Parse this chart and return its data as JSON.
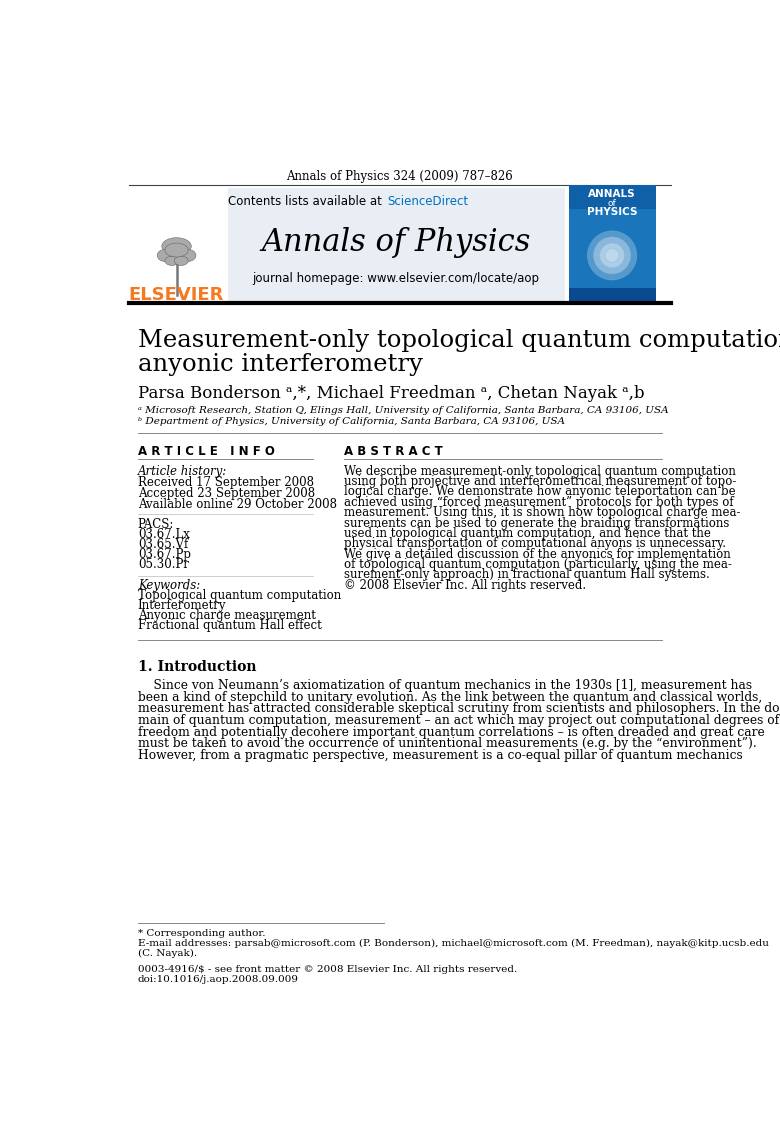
{
  "journal_header": "Annals of Physics 324 (2009) 787–826",
  "journal_name": "Annals of Physics",
  "journal_homepage": "journal homepage: www.elsevier.com/locate/aop",
  "contents_text": "Contents lists available at ScienceDirect",
  "elsevier_text": "ELSEVIER",
  "paper_title_line1": "Measurement-only topological quantum computation via",
  "paper_title_line2": "anyonic interferometry",
  "authors": "Parsa Bonderson ᵃ,*, Michael Freedman ᵃ, Chetan Nayak ᵃ,b",
  "affil_a": "ᵃ Microsoft Research, Station Q, Elings Hall, University of California, Santa Barbara, CA 93106, USA",
  "affil_b": "ᵇ Department of Physics, University of California, Santa Barbara, CA 93106, USA",
  "section_article_info": "A R T I C L E   I N F O",
  "section_abstract": "A B S T R A C T",
  "article_history_label": "Article history:",
  "received": "Received 17 September 2008",
  "accepted": "Accepted 23 September 2008",
  "available": "Available online 29 October 2008",
  "pacs_label": "PACS:",
  "pacs1": "03.67.Lx",
  "pacs2": "03.65.Vf",
  "pacs3": "03.67.Pp",
  "pacs4": "05.30.Pr",
  "keywords_label": "Keywords:",
  "keyword1": "Topological quantum computation",
  "keyword2": "Interferometry",
  "keyword3": "Anyonic charge measurement",
  "keyword4": "Fractional quantum Hall effect",
  "abstract_lines": [
    "We describe measurement-only topological quantum computation",
    "using both projective and interferometrical measurement of topo-",
    "logical charge. We demonstrate how anyonic teleportation can be",
    "achieved using “forced measurement” protocols for both types of",
    "measurement. Using this, it is shown how topological charge mea-",
    "surements can be used to generate the braiding transformations",
    "used in topological quantum computation, and hence that the",
    "physical transportation of computational anyons is unnecessary.",
    "We give a detailed discussion of the anyonics for implementation",
    "of topological quantum computation (particularly, using the mea-",
    "surement-only approach) in fractional quantum Hall systems.",
    "© 2008 Elsevier Inc. All rights reserved."
  ],
  "intro_section": "1. Introduction",
  "intro_lines": [
    "    Since von Neumann’s axiomatization of quantum mechanics in the 1930s [1], measurement has",
    "been a kind of stepchild to unitary evolution. As the link between the quantum and classical worlds,",
    "measurement has attracted considerable skeptical scrutiny from scientists and philosophers. In the do-",
    "main of quantum computation, measurement – an act which may project out computational degrees of",
    "freedom and potentially decohere important quantum correlations – is often dreaded and great care",
    "must be taken to avoid the occurrence of unintentional measurements (e.g. by the “environment”).",
    "However, from a pragmatic perspective, measurement is a co-equal pillar of quantum mechanics"
  ],
  "footnote_star": "* Corresponding author.",
  "footnote_email1": "E-mail addresses: parsab@microsoft.com (P. Bonderson), michael@microsoft.com (M. Freedman), nayak@kitp.ucsb.edu",
  "footnote_email2": "(C. Nayak).",
  "footnote_issn": "0003-4916/$ - see front matter © 2008 Elsevier Inc. All rights reserved.",
  "footnote_doi": "doi:10.1016/j.aop.2008.09.009",
  "bg_color": "#ffffff",
  "header_bg": "#e8eef4",
  "elsevier_orange": "#f47920",
  "sciencedirect_blue": "#0070c0",
  "annals_cover_blue": "#1a75bb",
  "text_color": "#000000"
}
